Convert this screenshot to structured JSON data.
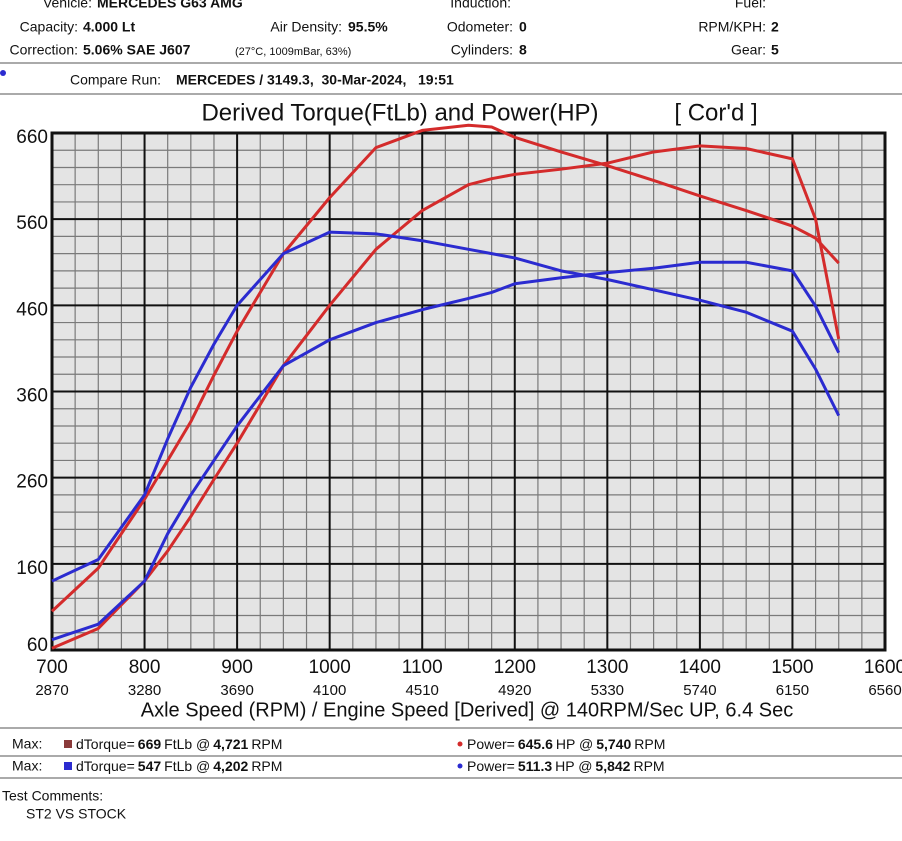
{
  "header": {
    "vehicle_label": "Vehicle:",
    "vehicle": "MERCEDES G63 AMG",
    "induction_label": "Induction:",
    "fuel_label": "Fuel:",
    "capacity_label": "Capacity:",
    "capacity": "4.000 Lt",
    "air_density_label": "Air Density:",
    "air_density": "95.5%",
    "odometer_label": "Odometer:",
    "odometer": "0",
    "rpm_kph_label": "RPM/KPH:",
    "rpm_kph": "2",
    "correction_label": "Correction:",
    "correction": "5.06% SAE J607",
    "correction_note": "(27°C, 1009mBar, 63%)",
    "cylinders_label": "Cylinders:",
    "cylinders": "8",
    "gear_label": "Gear:",
    "gear": "5",
    "compare_label": "Compare Run:",
    "compare": "MERCEDES / 3149.3,  30-Mar-2024,   19:51"
  },
  "chart_data": {
    "type": "line",
    "title": "Derived Torque(FtLb) and Power(HP)",
    "subtitle": "[ Cor'd ]",
    "x_label": "Axle Speed (RPM) / Engine Speed [Derived] @ 140RPM/Sec UP, 6.4 Sec",
    "x": [
      700,
      750,
      800,
      825,
      850,
      875,
      900,
      950,
      1000,
      1050,
      1100,
      1150,
      1175,
      1200,
      1250,
      1300,
      1350,
      1400,
      1450,
      1500,
      1525,
      1550
    ],
    "series": [
      {
        "color": "#d42b2b",
        "values": [
          105,
          155,
          235,
          280,
          325,
          379,
          430,
          520,
          585,
          643,
          663,
          669,
          667,
          655,
          638,
          622,
          605,
          587,
          570,
          552,
          538,
          509
        ]
      },
      {
        "color": "#d42b2b",
        "values": [
          62,
          85,
          140,
          175,
          215,
          258,
          300,
          390,
          460,
          525,
          570,
          600,
          607,
          612,
          618,
          625,
          638,
          645,
          642,
          630,
          560,
          421
        ]
      },
      {
        "color": "#2b2bd0",
        "values": [
          140,
          165,
          240,
          305,
          365,
          415,
          460,
          520,
          545,
          543,
          535,
          525,
          520,
          515,
          500,
          490,
          478,
          466,
          452,
          430,
          386,
          332
        ]
      },
      {
        "color": "#2b2bd0",
        "values": [
          72,
          90,
          140,
          195,
          240,
          280,
          320,
          390,
          420,
          440,
          455,
          468,
          475,
          485,
          492,
          498,
          503,
          510,
          510,
          500,
          459,
          405
        ]
      }
    ],
    "xlim": [
      700,
      1600
    ],
    "xticks": [
      700,
      800,
      900,
      1000,
      1100,
      1200,
      1300,
      1400,
      1500,
      1600
    ],
    "engine_speed_ticks": [
      2870,
      3280,
      3690,
      4100,
      4510,
      4920,
      5330,
      5740,
      6150,
      6560
    ],
    "ylim": [
      60,
      660
    ],
    "yticks": [
      60,
      160,
      260,
      360,
      460,
      560,
      660
    ],
    "grid": true,
    "minor_grid_divisions": {
      "x": 4,
      "y": 5
    }
  },
  "summary": [
    {
      "label": "Max:",
      "torque_name": "dTorque=",
      "torque": "669",
      "torque_unit": "FtLb @",
      "torque_rpm": "4,721",
      "power_name": "Power=",
      "power": "645.6",
      "power_unit": "HP @",
      "power_rpm": "5,740",
      "rpm_unit": "RPM",
      "torque_color": "#8a3a3a",
      "power_color": "#d42b2b"
    },
    {
      "label": "Max:",
      "torque_name": "dTorque=",
      "torque": "547",
      "torque_unit": "FtLb @",
      "torque_rpm": "4,202",
      "power_name": "Power=",
      "power": "511.3",
      "power_unit": "HP @",
      "power_rpm": "5,842",
      "rpm_unit": "RPM",
      "torque_color": "#2b2bd0",
      "power_color": "#2b2bd0"
    }
  ],
  "comments": {
    "label": "Test Comments:",
    "text": "ST2 VS STOCK"
  }
}
